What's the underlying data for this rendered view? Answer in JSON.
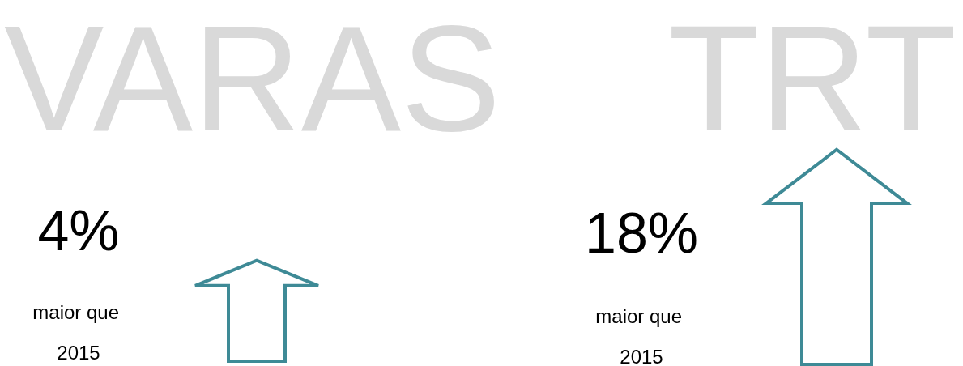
{
  "chart_data": {
    "type": "other",
    "categories": [
      "VARAS",
      "TRT"
    ],
    "values": [
      4,
      18
    ],
    "value_labels": [
      "4%",
      "18%"
    ],
    "annotations": [
      "maior que 2015",
      "maior que 2015"
    ]
  }
}
